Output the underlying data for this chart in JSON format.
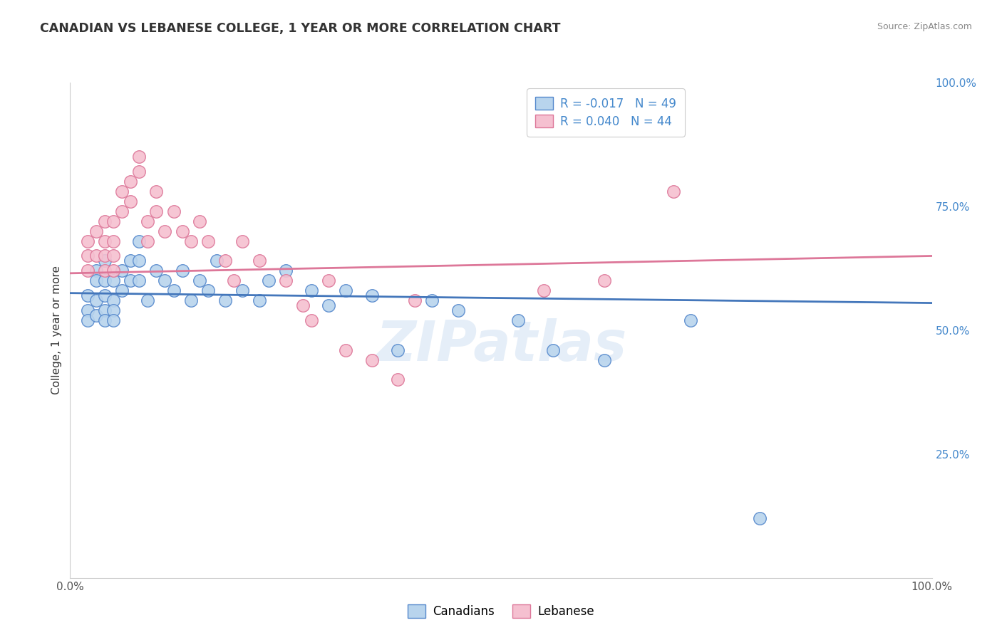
{
  "title": "CANADIAN VS LEBANESE COLLEGE, 1 YEAR OR MORE CORRELATION CHART",
  "source_text": "Source: ZipAtlas.com",
  "ylabel": "College, 1 year or more",
  "xlim": [
    0,
    1
  ],
  "ylim": [
    0,
    1
  ],
  "x_tick_labels": [
    "0.0%",
    "100.0%"
  ],
  "y_tick_labels": [
    "25.0%",
    "50.0%",
    "75.0%",
    "100.0%"
  ],
  "y_tick_positions": [
    0.25,
    0.5,
    0.75,
    1.0
  ],
  "background_color": "#ffffff",
  "grid_color": "#d0d0d0",
  "watermark_text": "ZIPatlas",
  "canadians_color": "#b8d4ed",
  "canadians_edge_color": "#5588cc",
  "canadians_line_color": "#4477bb",
  "lebanese_color": "#f5c0d0",
  "lebanese_edge_color": "#dd7799",
  "lebanese_line_color": "#dd7799",
  "canadians_R": -0.017,
  "canadians_N": 49,
  "lebanese_R": 0.04,
  "lebanese_N": 44,
  "legend_label_canadians": "Canadians",
  "legend_label_lebanese": "Lebanese",
  "canadians_x": [
    0.02,
    0.02,
    0.02,
    0.03,
    0.03,
    0.03,
    0.03,
    0.04,
    0.04,
    0.04,
    0.04,
    0.04,
    0.05,
    0.05,
    0.05,
    0.05,
    0.06,
    0.06,
    0.07,
    0.07,
    0.08,
    0.08,
    0.08,
    0.09,
    0.1,
    0.11,
    0.12,
    0.13,
    0.14,
    0.15,
    0.16,
    0.17,
    0.18,
    0.2,
    0.22,
    0.23,
    0.25,
    0.28,
    0.3,
    0.32,
    0.35,
    0.38,
    0.42,
    0.45,
    0.52,
    0.56,
    0.62,
    0.72,
    0.8
  ],
  "canadians_y": [
    0.57,
    0.54,
    0.52,
    0.62,
    0.6,
    0.56,
    0.53,
    0.64,
    0.6,
    0.57,
    0.54,
    0.52,
    0.6,
    0.56,
    0.54,
    0.52,
    0.62,
    0.58,
    0.64,
    0.6,
    0.68,
    0.64,
    0.6,
    0.56,
    0.62,
    0.6,
    0.58,
    0.62,
    0.56,
    0.6,
    0.58,
    0.64,
    0.56,
    0.58,
    0.56,
    0.6,
    0.62,
    0.58,
    0.55,
    0.58,
    0.57,
    0.46,
    0.56,
    0.54,
    0.52,
    0.46,
    0.44,
    0.52,
    0.12
  ],
  "lebanese_x": [
    0.02,
    0.02,
    0.02,
    0.03,
    0.03,
    0.04,
    0.04,
    0.04,
    0.04,
    0.05,
    0.05,
    0.05,
    0.05,
    0.06,
    0.06,
    0.07,
    0.07,
    0.08,
    0.08,
    0.09,
    0.09,
    0.1,
    0.1,
    0.11,
    0.12,
    0.13,
    0.14,
    0.15,
    0.16,
    0.18,
    0.19,
    0.2,
    0.22,
    0.25,
    0.27,
    0.28,
    0.3,
    0.32,
    0.35,
    0.38,
    0.4,
    0.55,
    0.62,
    0.7
  ],
  "lebanese_y": [
    0.68,
    0.65,
    0.62,
    0.7,
    0.65,
    0.72,
    0.68,
    0.65,
    0.62,
    0.72,
    0.68,
    0.65,
    0.62,
    0.78,
    0.74,
    0.8,
    0.76,
    0.85,
    0.82,
    0.72,
    0.68,
    0.78,
    0.74,
    0.7,
    0.74,
    0.7,
    0.68,
    0.72,
    0.68,
    0.64,
    0.6,
    0.68,
    0.64,
    0.6,
    0.55,
    0.52,
    0.6,
    0.46,
    0.44,
    0.4,
    0.56,
    0.58,
    0.6,
    0.78
  ]
}
